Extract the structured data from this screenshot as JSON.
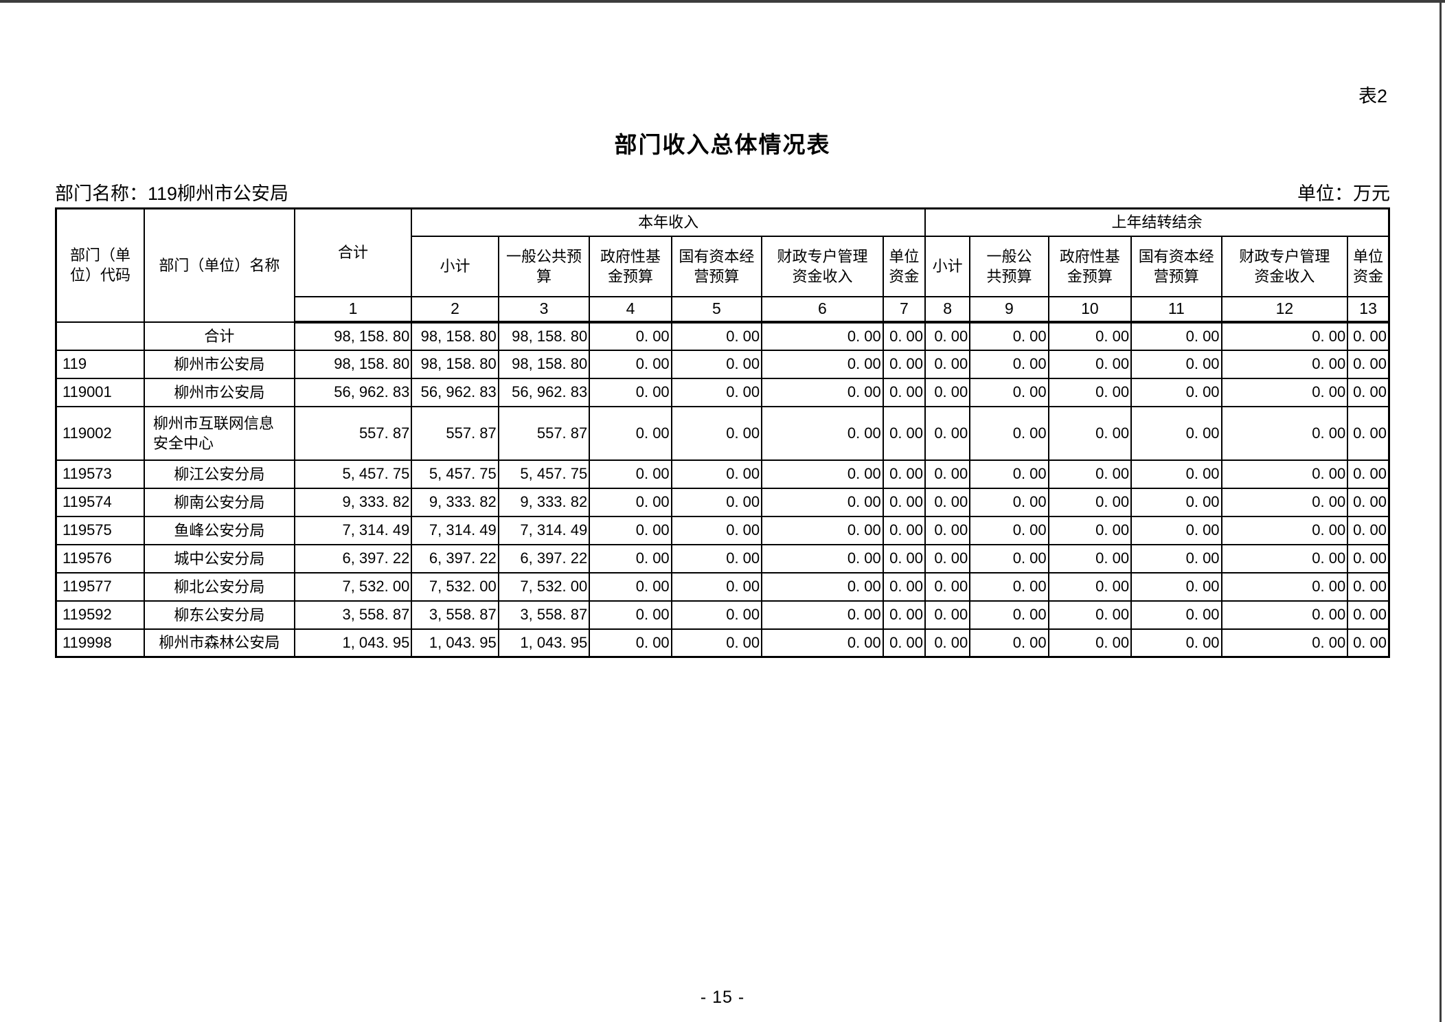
{
  "page": {
    "table_tag": "表2",
    "title": "部门收入总体情况表",
    "dept_label": "部门名称：119柳州市公安局",
    "unit_label": "单位：万元",
    "page_number": "- 15 -"
  },
  "table": {
    "header": {
      "code": "部门（单\n位）代码",
      "name": "部门（单位）名称",
      "total": "合计",
      "group1": "本年收入",
      "group2": "上年结转结余",
      "g1_cols": [
        "小计",
        "一般公共预\n算",
        "政府性基\n金预算",
        "国有资本经\n营预算",
        "财政专户管理\n资金收入",
        "单位\n资金"
      ],
      "g2_cols": [
        "小计",
        "一般公\n共预算",
        "政府性基\n金预算",
        "国有资本经\n营预算",
        "财政专户管理\n资金收入",
        "单位\n资金"
      ],
      "col_numbers": [
        "1",
        "2",
        "3",
        "4",
        "5",
        "6",
        "7",
        "8",
        "9",
        "10",
        "11",
        "12",
        "13"
      ]
    },
    "rows": [
      {
        "code": "",
        "name": "合计",
        "values": [
          "98, 158. 80",
          "98, 158. 80",
          "98, 158. 80",
          "0. 00",
          "0. 00",
          "0. 00",
          "0. 00",
          "0. 00",
          "0. 00",
          "0. 00",
          "0. 00",
          "0. 00",
          "0. 00"
        ]
      },
      {
        "code": "119",
        "name": "柳州市公安局",
        "values": [
          "98, 158. 80",
          "98, 158. 80",
          "98, 158. 80",
          "0. 00",
          "0. 00",
          "0. 00",
          "0. 00",
          "0. 00",
          "0. 00",
          "0. 00",
          "0. 00",
          "0. 00",
          "0. 00"
        ]
      },
      {
        "code": "119001",
        "name": "柳州市公安局",
        "values": [
          "56, 962. 83",
          "56, 962. 83",
          "56, 962. 83",
          "0. 00",
          "0. 00",
          "0. 00",
          "0. 00",
          "0. 00",
          "0. 00",
          "0. 00",
          "0. 00",
          "0. 00",
          "0. 00"
        ]
      },
      {
        "code": "119002",
        "name": "柳州市互联网信息安全中心",
        "values": [
          "557. 87",
          "557. 87",
          "557. 87",
          "0. 00",
          "0. 00",
          "0. 00",
          "0. 00",
          "0. 00",
          "0. 00",
          "0. 00",
          "0. 00",
          "0. 00",
          "0. 00"
        ]
      },
      {
        "code": "119573",
        "name": "柳江公安分局",
        "values": [
          "5, 457. 75",
          "5, 457. 75",
          "5, 457. 75",
          "0. 00",
          "0. 00",
          "0. 00",
          "0. 00",
          "0. 00",
          "0. 00",
          "0. 00",
          "0. 00",
          "0. 00",
          "0. 00"
        ]
      },
      {
        "code": "119574",
        "name": "柳南公安分局",
        "values": [
          "9, 333. 82",
          "9, 333. 82",
          "9, 333. 82",
          "0. 00",
          "0. 00",
          "0. 00",
          "0. 00",
          "0. 00",
          "0. 00",
          "0. 00",
          "0. 00",
          "0. 00",
          "0. 00"
        ]
      },
      {
        "code": "119575",
        "name": "鱼峰公安分局",
        "values": [
          "7, 314. 49",
          "7, 314. 49",
          "7, 314. 49",
          "0. 00",
          "0. 00",
          "0. 00",
          "0. 00",
          "0. 00",
          "0. 00",
          "0. 00",
          "0. 00",
          "0. 00",
          "0. 00"
        ]
      },
      {
        "code": "119576",
        "name": "城中公安分局",
        "values": [
          "6, 397. 22",
          "6, 397. 22",
          "6, 397. 22",
          "0. 00",
          "0. 00",
          "0. 00",
          "0. 00",
          "0. 00",
          "0. 00",
          "0. 00",
          "0. 00",
          "0. 00",
          "0. 00"
        ]
      },
      {
        "code": "119577",
        "name": "柳北公安分局",
        "values": [
          "7, 532. 00",
          "7, 532. 00",
          "7, 532. 00",
          "0. 00",
          "0. 00",
          "0. 00",
          "0. 00",
          "0. 00",
          "0. 00",
          "0. 00",
          "0. 00",
          "0. 00",
          "0. 00"
        ]
      },
      {
        "code": "119592",
        "name": "柳东公安分局",
        "values": [
          "3, 558. 87",
          "3, 558. 87",
          "3, 558. 87",
          "0. 00",
          "0. 00",
          "0. 00",
          "0. 00",
          "0. 00",
          "0. 00",
          "0. 00",
          "0. 00",
          "0. 00",
          "0. 00"
        ]
      },
      {
        "code": "119998",
        "name": "柳州市森林公安局",
        "values": [
          "1, 043. 95",
          "1, 043. 95",
          "1, 043. 95",
          "0. 00",
          "0. 00",
          "0. 00",
          "0. 00",
          "0. 00",
          "0. 00",
          "0. 00",
          "0. 00",
          "0. 00",
          "0. 00"
        ]
      }
    ]
  }
}
